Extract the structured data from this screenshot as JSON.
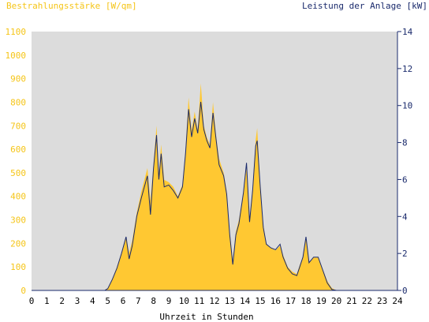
{
  "chart_data": {
    "type": "area",
    "title_left": "Bestrahlungsstärke [W/qm]",
    "title_right": "Leistung der Anlage [kW]",
    "xlabel": "Uhrzeit in Stunden",
    "xlim": [
      0,
      24
    ],
    "x_ticks": [
      "0",
      "1",
      "2",
      "3",
      "4",
      "5",
      "6",
      "7",
      "8",
      "9",
      "10",
      "11",
      "12",
      "13",
      "14",
      "15",
      "16",
      "17",
      "18",
      "19",
      "20",
      "21",
      "22",
      "23",
      "24"
    ],
    "y_left": {
      "lim": [
        0,
        1100
      ],
      "ticks": [
        "0",
        "100",
        "200",
        "300",
        "400",
        "500",
        "600",
        "700",
        "800",
        "900",
        "1000",
        "1100"
      ]
    },
    "y_right": {
      "lim": [
        0,
        14
      ],
      "ticks": [
        "0",
        "2",
        "4",
        "6",
        "8",
        "10",
        "12",
        "14"
      ]
    },
    "colors": {
      "irradiance": "#ffc832",
      "irradiance_text": "#f5c518",
      "power": "#1a2a6c",
      "plot_bg": "#dcdcdc"
    },
    "series": [
      {
        "name": "Bestrahlungsstärke [W/qm]",
        "axis": "left",
        "points": [
          [
            0,
            0
          ],
          [
            4.8,
            0
          ],
          [
            5.0,
            10
          ],
          [
            5.3,
            50
          ],
          [
            5.6,
            100
          ],
          [
            5.9,
            160
          ],
          [
            6.2,
            230
          ],
          [
            6.4,
            160
          ],
          [
            6.6,
            210
          ],
          [
            6.9,
            330
          ],
          [
            7.2,
            420
          ],
          [
            7.6,
            520
          ],
          [
            7.8,
            380
          ],
          [
            8.0,
            540
          ],
          [
            8.2,
            700
          ],
          [
            8.35,
            500
          ],
          [
            8.5,
            620
          ],
          [
            8.7,
            470
          ],
          [
            9.0,
            460
          ],
          [
            9.3,
            440
          ],
          [
            9.6,
            400
          ],
          [
            9.9,
            450
          ],
          [
            10.1,
            600
          ],
          [
            10.3,
            820
          ],
          [
            10.5,
            680
          ],
          [
            10.7,
            760
          ],
          [
            10.9,
            680
          ],
          [
            11.1,
            880
          ],
          [
            11.3,
            700
          ],
          [
            11.5,
            650
          ],
          [
            11.7,
            620
          ],
          [
            11.9,
            800
          ],
          [
            12.1,
            660
          ],
          [
            12.3,
            560
          ],
          [
            12.6,
            500
          ],
          [
            12.8,
            420
          ],
          [
            13.0,
            250
          ],
          [
            13.2,
            130
          ],
          [
            13.4,
            250
          ],
          [
            13.6,
            300
          ],
          [
            13.9,
            420
          ],
          [
            14.1,
            520
          ],
          [
            14.3,
            300
          ],
          [
            14.5,
            440
          ],
          [
            14.7,
            640
          ],
          [
            14.8,
            690
          ],
          [
            15.0,
            450
          ],
          [
            15.2,
            280
          ],
          [
            15.4,
            200
          ],
          [
            15.7,
            180
          ],
          [
            16.0,
            170
          ],
          [
            16.3,
            190
          ],
          [
            16.5,
            150
          ],
          [
            16.8,
            100
          ],
          [
            17.1,
            80
          ],
          [
            17.4,
            70
          ],
          [
            17.6,
            110
          ],
          [
            17.8,
            140
          ],
          [
            18.0,
            220
          ],
          [
            18.2,
            120
          ],
          [
            18.5,
            140
          ],
          [
            18.8,
            140
          ],
          [
            19.1,
            90
          ],
          [
            19.4,
            40
          ],
          [
            19.7,
            10
          ],
          [
            20.0,
            0
          ],
          [
            24,
            0
          ]
        ]
      },
      {
        "name": "Leistung der Anlage [kW]",
        "axis": "right",
        "points": [
          [
            0,
            0
          ],
          [
            4.8,
            0
          ],
          [
            5.0,
            0.1
          ],
          [
            5.3,
            0.6
          ],
          [
            5.6,
            1.2
          ],
          [
            5.9,
            2.0
          ],
          [
            6.2,
            2.9
          ],
          [
            6.4,
            1.7
          ],
          [
            6.6,
            2.4
          ],
          [
            6.9,
            4.0
          ],
          [
            7.2,
            5.0
          ],
          [
            7.6,
            6.2
          ],
          [
            7.8,
            4.1
          ],
          [
            8.0,
            6.6
          ],
          [
            8.2,
            8.4
          ],
          [
            8.35,
            6.0
          ],
          [
            8.5,
            7.4
          ],
          [
            8.7,
            5.6
          ],
          [
            9.0,
            5.7
          ],
          [
            9.3,
            5.4
          ],
          [
            9.6,
            5.0
          ],
          [
            9.9,
            5.6
          ],
          [
            10.1,
            7.4
          ],
          [
            10.3,
            9.8
          ],
          [
            10.5,
            8.3
          ],
          [
            10.7,
            9.3
          ],
          [
            10.9,
            8.5
          ],
          [
            11.1,
            10.2
          ],
          [
            11.3,
            8.7
          ],
          [
            11.5,
            8.1
          ],
          [
            11.7,
            7.7
          ],
          [
            11.9,
            9.6
          ],
          [
            12.1,
            8.2
          ],
          [
            12.3,
            6.8
          ],
          [
            12.6,
            6.2
          ],
          [
            12.8,
            5.2
          ],
          [
            13.0,
            3.0
          ],
          [
            13.2,
            1.4
          ],
          [
            13.4,
            3.0
          ],
          [
            13.6,
            3.6
          ],
          [
            13.9,
            5.3
          ],
          [
            14.1,
            6.9
          ],
          [
            14.3,
            3.7
          ],
          [
            14.5,
            5.4
          ],
          [
            14.7,
            7.8
          ],
          [
            14.8,
            8.1
          ],
          [
            15.0,
            5.6
          ],
          [
            15.2,
            3.4
          ],
          [
            15.4,
            2.5
          ],
          [
            15.7,
            2.3
          ],
          [
            16.0,
            2.2
          ],
          [
            16.3,
            2.5
          ],
          [
            16.5,
            1.8
          ],
          [
            16.8,
            1.2
          ],
          [
            17.1,
            0.9
          ],
          [
            17.4,
            0.8
          ],
          [
            17.6,
            1.3
          ],
          [
            17.8,
            1.8
          ],
          [
            18.0,
            2.9
          ],
          [
            18.2,
            1.5
          ],
          [
            18.5,
            1.8
          ],
          [
            18.8,
            1.8
          ],
          [
            19.1,
            1.1
          ],
          [
            19.4,
            0.4
          ],
          [
            19.7,
            0.05
          ],
          [
            20.0,
            0
          ],
          [
            24,
            0
          ]
        ]
      }
    ]
  }
}
